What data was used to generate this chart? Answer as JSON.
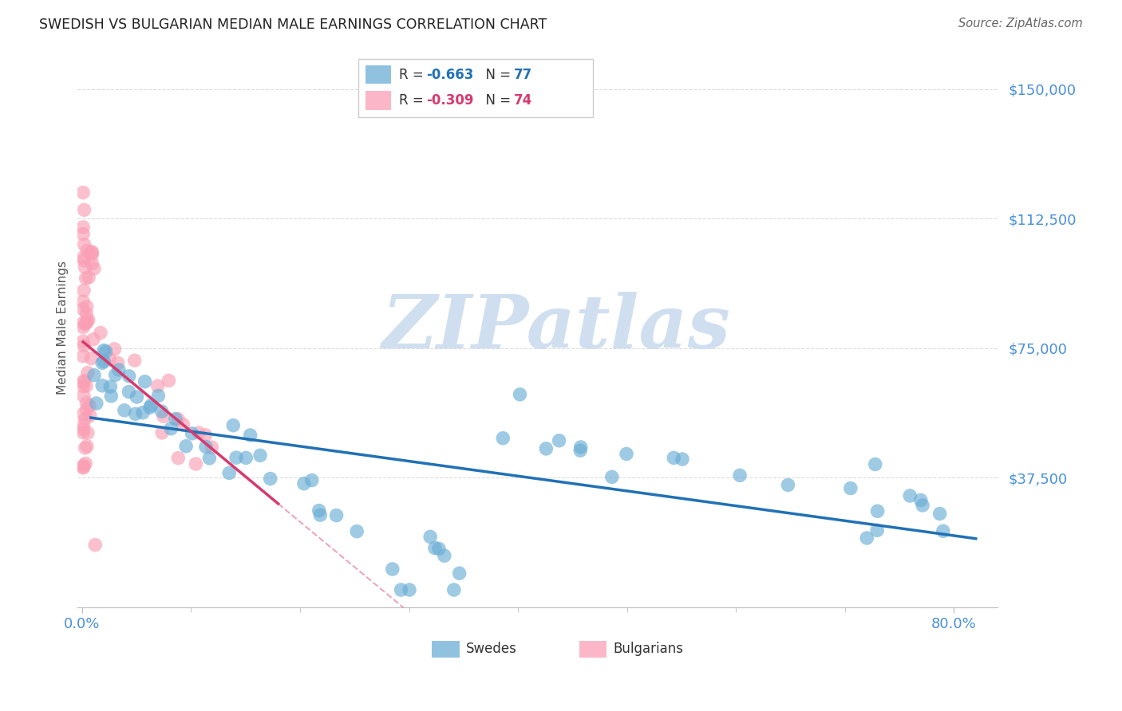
{
  "title": "SWEDISH VS BULGARIAN MEDIAN MALE EARNINGS CORRELATION CHART",
  "source": "Source: ZipAtlas.com",
  "ylabel": "Median Male Earnings",
  "ytick_labels": [
    "$37,500",
    "$75,000",
    "$112,500",
    "$150,000"
  ],
  "ytick_values": [
    37500,
    75000,
    112500,
    150000
  ],
  "ymin": 0,
  "ymax": 162000,
  "xmin": -0.004,
  "xmax": 0.84,
  "swedes_color": "#6baed6",
  "bulgarians_color": "#fa9fb5",
  "swedes_line_color": "#2171b5",
  "bulgarians_line_color": "#d63a6e",
  "swedes_R": -0.663,
  "swedes_N": 77,
  "bulgarians_R": -0.309,
  "bulgarians_N": 74,
  "watermark": "ZIPatlas",
  "watermark_color": "#d0dff0",
  "background_color": "#ffffff",
  "grid_color": "#cccccc",
  "title_color": "#222222",
  "ytick_color": "#4a90d9",
  "legend_R_color": "#333333",
  "legend_N_color": "#1a1a1a",
  "bottom_legend_labels": [
    "Swedes",
    "Bulgarians"
  ]
}
